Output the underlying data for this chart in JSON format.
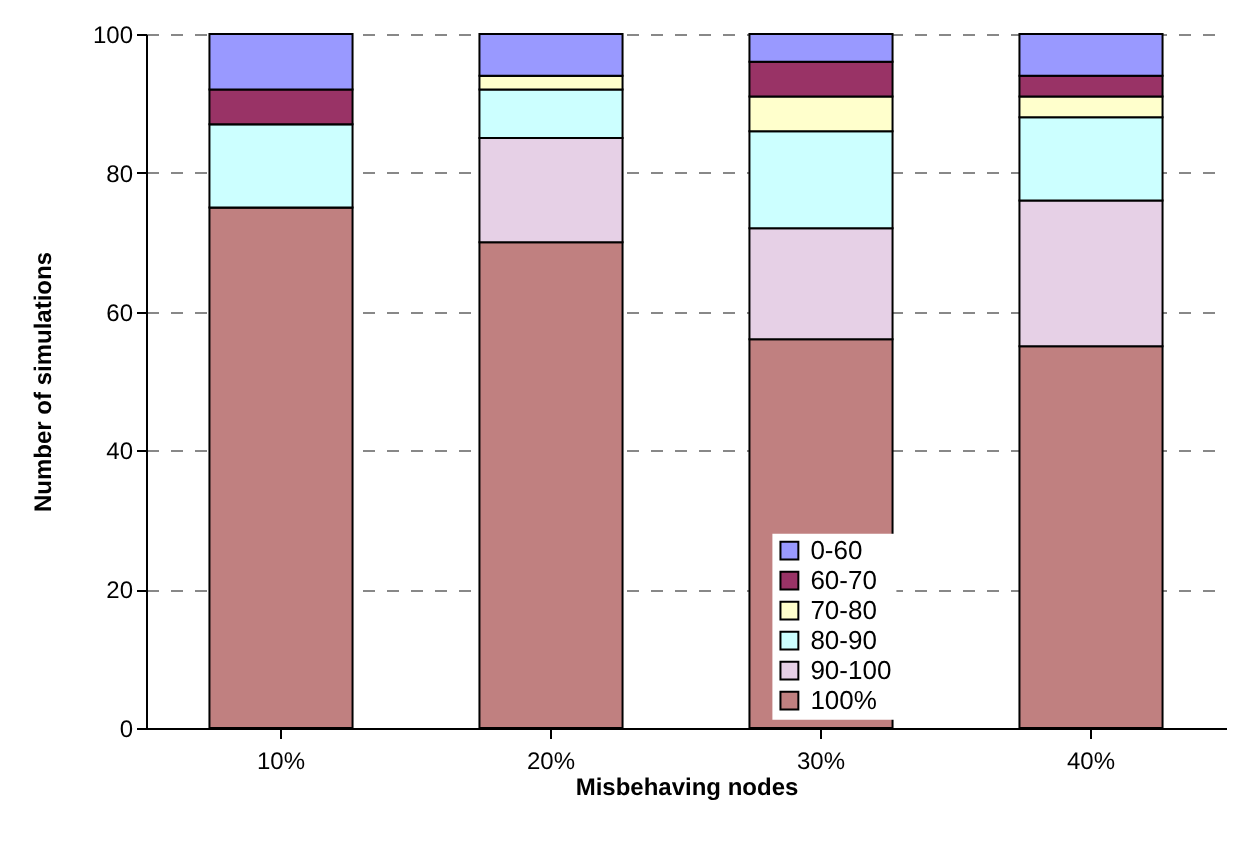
{
  "chart_data": {
    "type": "bar",
    "stacked": true,
    "xlabel": "Misbehaving nodes",
    "ylabel": "Number of simulations",
    "categories": [
      "10%",
      "20%",
      "30%",
      "40%"
    ],
    "series": [
      {
        "name": "100%",
        "color": "#c08080",
        "values": [
          75,
          70,
          56,
          55
        ]
      },
      {
        "name": "90-100",
        "color": "#e6d0e6",
        "values": [
          0,
          15,
          16,
          21
        ]
      },
      {
        "name": "80-90",
        "color": "#ccffff",
        "values": [
          12,
          7,
          14,
          12
        ]
      },
      {
        "name": "70-80",
        "color": "#ffffcc",
        "values": [
          0,
          2,
          5,
          3
        ]
      },
      {
        "name": "60-70",
        "color": "#993366",
        "values": [
          5,
          0,
          5,
          3
        ]
      },
      {
        "name": "0-60",
        "color": "#9999ff",
        "values": [
          8,
          6,
          4,
          6
        ]
      }
    ],
    "ylim": [
      0,
      100
    ],
    "yticks": [
      0,
      20,
      40,
      60,
      80,
      100
    ],
    "grid": "y",
    "legend": "bottom right"
  }
}
